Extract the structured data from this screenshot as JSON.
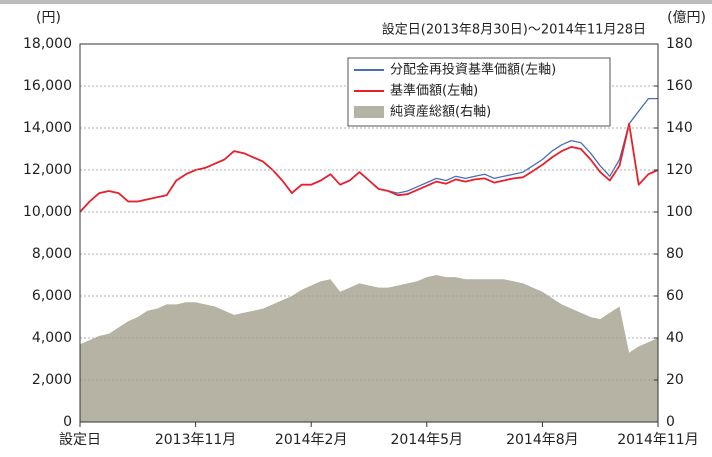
{
  "chart_data": {
    "type": "line",
    "subtitle": "設定日(2013年8月30日)～2014年11月28日",
    "y_unit": "(円)",
    "y2_unit": "(億円)",
    "categories": [
      "設定日",
      null,
      null,
      null,
      null,
      null,
      null,
      null,
      null,
      null,
      null,
      null,
      "2013年11月",
      null,
      null,
      null,
      null,
      null,
      null,
      null,
      null,
      null,
      null,
      null,
      "2014年2月",
      null,
      null,
      null,
      null,
      null,
      null,
      null,
      null,
      null,
      null,
      null,
      "2014年5月",
      null,
      null,
      null,
      null,
      null,
      null,
      null,
      null,
      null,
      null,
      null,
      "2014年8月",
      null,
      null,
      null,
      null,
      null,
      null,
      null,
      null,
      null,
      null,
      null,
      "2014年11月"
    ],
    "series": [
      {
        "name": "純資産総額(右軸)",
        "type": "area",
        "axis": "y2",
        "color": "#b6b3a4",
        "values": [
          37,
          39,
          41,
          42,
          45,
          48,
          50,
          53,
          54,
          56,
          56,
          57,
          57,
          56,
          55,
          53,
          51,
          52,
          53,
          54,
          56,
          58,
          60,
          63,
          65,
          67,
          68,
          62,
          64,
          66,
          65,
          64,
          64,
          65,
          66,
          67,
          69,
          70,
          69,
          69,
          68,
          68,
          68,
          68,
          68,
          67,
          66,
          64,
          62,
          59,
          56,
          54,
          52,
          50,
          49,
          52,
          55,
          33,
          36,
          38,
          40
        ]
      },
      {
        "name": "分配金再投資基準価額(左軸)",
        "type": "line",
        "color": "#4a6fb8",
        "values": [
          10000,
          10500,
          10900,
          11000,
          10900,
          10500,
          10500,
          10600,
          10700,
          10800,
          11500,
          11800,
          12000,
          12100,
          12300,
          12500,
          12900,
          12800,
          12600,
          12400,
          12000,
          11500,
          10900,
          11300,
          11300,
          11500,
          11800,
          11300,
          11500,
          11900,
          11500,
          11100,
          11000,
          10900,
          11000,
          11200,
          11400,
          11600,
          11500,
          11700,
          11600,
          11700,
          11800,
          11600,
          11700,
          11800,
          11900,
          12200,
          12500,
          12900,
          13200,
          13400,
          13300,
          12800,
          12200,
          11700,
          12500,
          14200,
          14800,
          15400,
          15400
        ]
      },
      {
        "name": "基準価額(左軸)",
        "type": "line",
        "color": "#e8202a",
        "values": [
          10000,
          10500,
          10900,
          11000,
          10900,
          10500,
          10500,
          10600,
          10700,
          10800,
          11500,
          11800,
          12000,
          12100,
          12300,
          12500,
          12900,
          12800,
          12600,
          12400,
          12000,
          11500,
          10900,
          11300,
          11300,
          11500,
          11800,
          11300,
          11500,
          11900,
          11500,
          11100,
          11000,
          10800,
          10850,
          11050,
          11250,
          11450,
          11350,
          11550,
          11450,
          11550,
          11600,
          11400,
          11500,
          11600,
          11650,
          11950,
          12250,
          12600,
          12900,
          13100,
          13000,
          12500,
          11900,
          11500,
          12200,
          14200,
          11300,
          11800,
          12000
        ]
      }
    ],
    "ylim": [
      0,
      18000
    ],
    "yticks": [
      0,
      {
        "value": 2000,
        "label": "2,000"
      },
      {
        "value": 4000,
        "label": "4,000"
      },
      {
        "value": 6000,
        "label": "6,000"
      },
      {
        "value": 8000,
        "label": "8,000"
      },
      {
        "value": 10000,
        "label": "10,000"
      },
      {
        "value": 12000,
        "label": "12,000"
      },
      {
        "value": 14000,
        "label": "14,000"
      },
      {
        "value": 16000,
        "label": "16,000"
      },
      {
        "value": 18000,
        "label": "18,000"
      }
    ],
    "y2lim": [
      0,
      180
    ],
    "y2ticks": [
      0,
      20,
      40,
      60,
      80,
      100,
      120,
      140,
      160,
      180
    ],
    "grid": true
  }
}
